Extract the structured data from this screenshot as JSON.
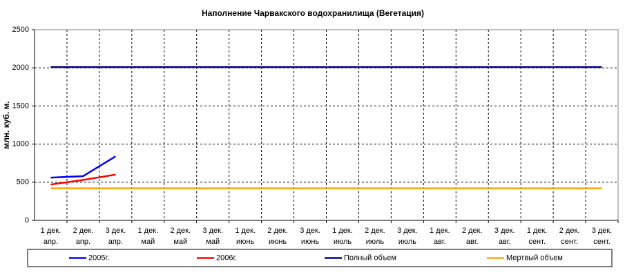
{
  "chart_data": {
    "type": "line",
    "title": "Наполнение Чарвакского водохранилища  (Вегетация)",
    "y_label": "млн. куб. м.",
    "categories": [
      [
        "1 дек.",
        "апр."
      ],
      [
        "2 дек.",
        "апр."
      ],
      [
        "3 дек.",
        "апр."
      ],
      [
        "1 дек.",
        "май"
      ],
      [
        "2 дек.",
        "май"
      ],
      [
        "3 дек.",
        "май"
      ],
      [
        "1 дек.",
        "июнь"
      ],
      [
        "2 дек.",
        "июнь"
      ],
      [
        "3 дек.",
        "июнь"
      ],
      [
        "1 дек.",
        "июль"
      ],
      [
        "2 дек.",
        "июль"
      ],
      [
        "3 дек.",
        "июль"
      ],
      [
        "1 дек.",
        "авг."
      ],
      [
        "2 дек.",
        "авг."
      ],
      [
        "3 дек.",
        "авг."
      ],
      [
        "1 дек.",
        "сент."
      ],
      [
        "2 дек.",
        "сент."
      ],
      [
        "3 дек.",
        "сент."
      ]
    ],
    "series": [
      {
        "name": "2005г.",
        "color": "#0000ff",
        "values": [
          560,
          580,
          840,
          null,
          null,
          null,
          null,
          null,
          null,
          null,
          null,
          null,
          null,
          null,
          null,
          null,
          null,
          null
        ]
      },
      {
        "name": "2006г.",
        "color": "#ff0000",
        "values": [
          470,
          530,
          600,
          null,
          null,
          null,
          null,
          null,
          null,
          null,
          null,
          null,
          null,
          null,
          null,
          null,
          null,
          null
        ]
      },
      {
        "name": "Полный объем",
        "color": "#000080",
        "values": [
          2010,
          2010,
          2010,
          2010,
          2010,
          2010,
          2010,
          2010,
          2010,
          2010,
          2010,
          2010,
          2010,
          2010,
          2010,
          2010,
          2010,
          2010
        ]
      },
      {
        "name": "Мертвый объем",
        "color": "#ffa500",
        "values": [
          420,
          420,
          420,
          420,
          420,
          420,
          420,
          420,
          420,
          420,
          420,
          420,
          420,
          420,
          420,
          420,
          420,
          420
        ]
      }
    ],
    "ylim": [
      0,
      2500
    ],
    "yticks": [
      0,
      500,
      1000,
      1500,
      2000,
      2500
    ],
    "grid": true,
    "legend": "bottom"
  }
}
